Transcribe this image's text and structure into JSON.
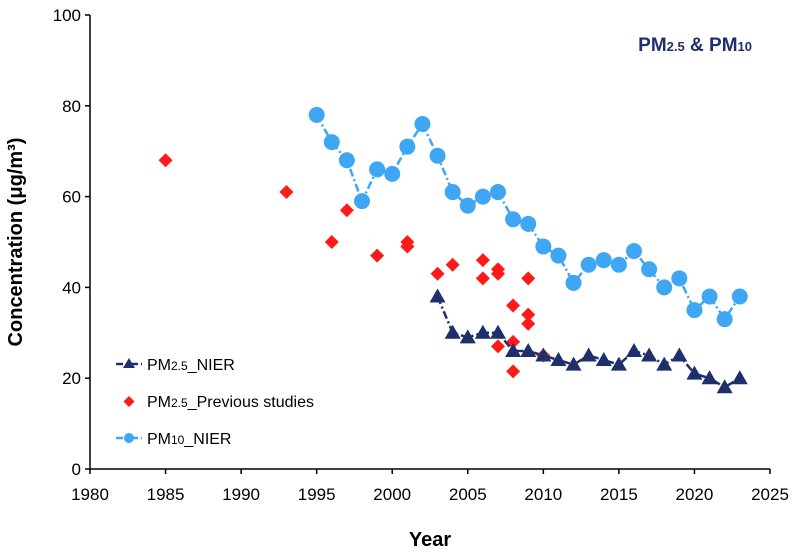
{
  "chart_data": {
    "type": "scatter",
    "title_parts": {
      "a": "PM",
      "a_sub": "2.5",
      "mid": " & PM",
      "b_sub": "10"
    },
    "xlabel": "Year",
    "ylabel": "Concentration (μg/m³)",
    "xlim": [
      1980,
      2025
    ],
    "ylim": [
      0,
      100
    ],
    "xticks": [
      "1980",
      "1985",
      "1990",
      "1995",
      "2000",
      "2005",
      "2010",
      "2015",
      "2020",
      "2025"
    ],
    "yticks": [
      "0",
      "20",
      "40",
      "60",
      "80",
      "100"
    ],
    "grid": false,
    "legend_position": "bottom-left",
    "series": [
      {
        "key": "pm25_nier",
        "legend": {
          "pre": "PM",
          "sub": "2.5",
          "post": "_NIER"
        },
        "marker": "triangle",
        "line": "dashdot",
        "color": "#1f2f6b",
        "x": [
          2003,
          2004,
          2005,
          2006,
          2007,
          2008,
          2009,
          2010,
          2011,
          2012,
          2013,
          2014,
          2015,
          2016,
          2017,
          2018,
          2019,
          2020,
          2021,
          2022,
          2023
        ],
        "y": [
          38,
          30,
          29,
          30,
          30,
          26,
          26,
          25,
          24,
          23,
          25,
          24,
          23,
          26,
          25,
          23,
          25,
          21,
          20,
          18,
          20
        ]
      },
      {
        "key": "pm25_previous",
        "legend": {
          "pre": "PM",
          "sub": "2.5",
          "post": "_Previous studies"
        },
        "marker": "diamond",
        "line": "none",
        "color": "#ff1a1a",
        "x": [
          1985,
          1993,
          1996,
          1997,
          1999,
          2001,
          2001,
          2003,
          2004,
          2006,
          2006,
          2007,
          2007,
          2007,
          2008,
          2008,
          2008,
          2009,
          2009,
          2009,
          2010
        ],
        "y": [
          68,
          61,
          50,
          57,
          47,
          49,
          50,
          43,
          45,
          46,
          42,
          43,
          44,
          27,
          36,
          28,
          21.5,
          42,
          34,
          32,
          25
        ]
      },
      {
        "key": "pm10_nier",
        "legend": {
          "pre": "PM",
          "sub": "10",
          "post": "_NIER"
        },
        "marker": "circle",
        "line": "dashdot",
        "color": "#3ea6f2",
        "x": [
          1995,
          1996,
          1997,
          1998,
          1999,
          2000,
          2001,
          2002,
          2003,
          2004,
          2005,
          2006,
          2007,
          2008,
          2009,
          2010,
          2011,
          2012,
          2013,
          2014,
          2015,
          2016,
          2017,
          2018,
          2019,
          2020,
          2021,
          2022,
          2023
        ],
        "y": [
          78,
          72,
          68,
          59,
          66,
          65,
          71,
          76,
          69,
          61,
          58,
          60,
          61,
          55,
          54,
          49,
          47,
          41,
          45,
          46,
          45,
          48,
          44,
          40,
          42,
          35,
          38,
          33,
          38
        ]
      }
    ]
  }
}
